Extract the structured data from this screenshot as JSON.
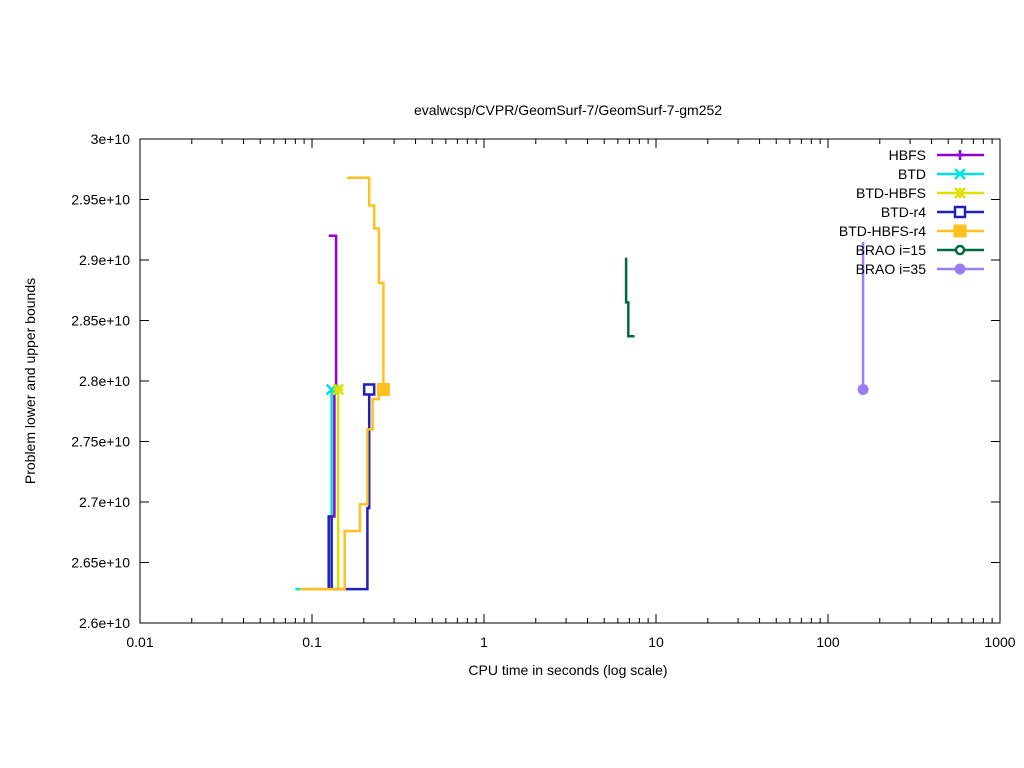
{
  "chart_data": {
    "type": "line",
    "title": "evalwcsp/CVPR/GeomSurf-7/GeomSurf-7-gm252",
    "xlabel": "CPU time in seconds (log scale)",
    "ylabel": "Problem lower and upper bounds",
    "xscale": "log",
    "xlim": [
      0.01,
      1000
    ],
    "ylim": [
      26000000000,
      30000000000
    ],
    "x_ticks": [
      {
        "value": 0.01,
        "label": "0.01"
      },
      {
        "value": 0.1,
        "label": "0.1"
      },
      {
        "value": 1,
        "label": "1"
      },
      {
        "value": 10,
        "label": "10"
      },
      {
        "value": 100,
        "label": "100"
      },
      {
        "value": 1000,
        "label": "1000"
      }
    ],
    "y_ticks": [
      {
        "value": 26000000000,
        "label": "2.6e+10"
      },
      {
        "value": 26500000000,
        "label": "2.65e+10"
      },
      {
        "value": 27000000000,
        "label": "2.7e+10"
      },
      {
        "value": 27500000000,
        "label": "2.75e+10"
      },
      {
        "value": 28000000000,
        "label": "2.8e+10"
      },
      {
        "value": 28500000000,
        "label": "2.85e+10"
      },
      {
        "value": 29000000000,
        "label": "2.9e+10"
      },
      {
        "value": 29500000000,
        "label": "2.95e+10"
      },
      {
        "value": 30000000000,
        "label": "3e+10"
      }
    ],
    "grid": false,
    "legend_position": "top-right",
    "series": [
      {
        "name": "HBFS",
        "color": "#9400d3",
        "marker": "plus",
        "upper": [
          [
            0.125,
            29200000000
          ],
          [
            0.138,
            29200000000
          ],
          [
            0.138,
            27930000000
          ]
        ],
        "lower": [
          [
            0.125,
            26880000000
          ],
          [
            0.135,
            26880000000
          ],
          [
            0.135,
            27930000000
          ]
        ],
        "marker_points": []
      },
      {
        "name": "BTD",
        "color": "#00e0e0",
        "marker": "cross",
        "upper": [
          [
            0.13,
            27930000000
          ]
        ],
        "lower": [
          [
            0.08,
            26280000000
          ],
          [
            0.13,
            26280000000
          ],
          [
            0.13,
            27930000000
          ]
        ],
        "marker_points": [
          [
            0.13,
            27930000000
          ]
        ]
      },
      {
        "name": "BTD-HBFS",
        "color": "#e0e000",
        "marker": "star",
        "upper": [
          [
            0.142,
            27930000000
          ]
        ],
        "lower": [
          [
            0.09,
            26280000000
          ],
          [
            0.142,
            26280000000
          ],
          [
            0.142,
            27930000000
          ]
        ],
        "marker_points": [
          [
            0.142,
            27930000000
          ]
        ]
      },
      {
        "name": "BTD-r4",
        "color": "#2020c0",
        "marker": "open-square",
        "upper": [
          [
            0.21,
            27930000000
          ]
        ],
        "lower": [
          [
            0.125,
            26280000000
          ],
          [
            0.125,
            26880000000
          ],
          [
            0.13,
            26880000000
          ],
          [
            0.13,
            26280000000
          ],
          [
            0.21,
            26280000000
          ],
          [
            0.21,
            26950000000
          ],
          [
            0.215,
            26950000000
          ],
          [
            0.215,
            27930000000
          ]
        ],
        "marker_points": [
          [
            0.215,
            27930000000
          ]
        ]
      },
      {
        "name": "BTD-HBFS-r4",
        "color": "#ffc020",
        "marker": "filled-square",
        "upper": [
          [
            0.16,
            29680000000
          ],
          [
            0.215,
            29680000000
          ],
          [
            0.215,
            29450000000
          ],
          [
            0.23,
            29450000000
          ],
          [
            0.23,
            29260000000
          ],
          [
            0.245,
            29260000000
          ],
          [
            0.245,
            28810000000
          ],
          [
            0.26,
            28810000000
          ],
          [
            0.26,
            27930000000
          ]
        ],
        "lower": [
          [
            0.085,
            26280000000
          ],
          [
            0.155,
            26280000000
          ],
          [
            0.155,
            26760000000
          ],
          [
            0.19,
            26760000000
          ],
          [
            0.19,
            26980000000
          ],
          [
            0.21,
            26980000000
          ],
          [
            0.21,
            27600000000
          ],
          [
            0.225,
            27600000000
          ],
          [
            0.225,
            27850000000
          ],
          [
            0.245,
            27850000000
          ],
          [
            0.245,
            27930000000
          ]
        ],
        "marker_points": [
          [
            0.26,
            27930000000
          ]
        ]
      },
      {
        "name": "BRAO i=15",
        "color": "#006a3a",
        "marker": "open-circle",
        "upper": [
          [
            6.7,
            29020000000
          ],
          [
            6.7,
            28650000000
          ],
          [
            6.9,
            28650000000
          ],
          [
            6.9,
            28370000000
          ],
          [
            7.5,
            28370000000
          ]
        ],
        "lower": [],
        "marker_points": []
      },
      {
        "name": "BRAO i=35",
        "color": "#9a7ef0",
        "marker": "filled-circle",
        "upper": [
          [
            160,
            29150000000
          ],
          [
            160,
            27930000000
          ]
        ],
        "lower": [],
        "marker_points": [
          [
            160,
            27930000000
          ]
        ]
      }
    ]
  }
}
